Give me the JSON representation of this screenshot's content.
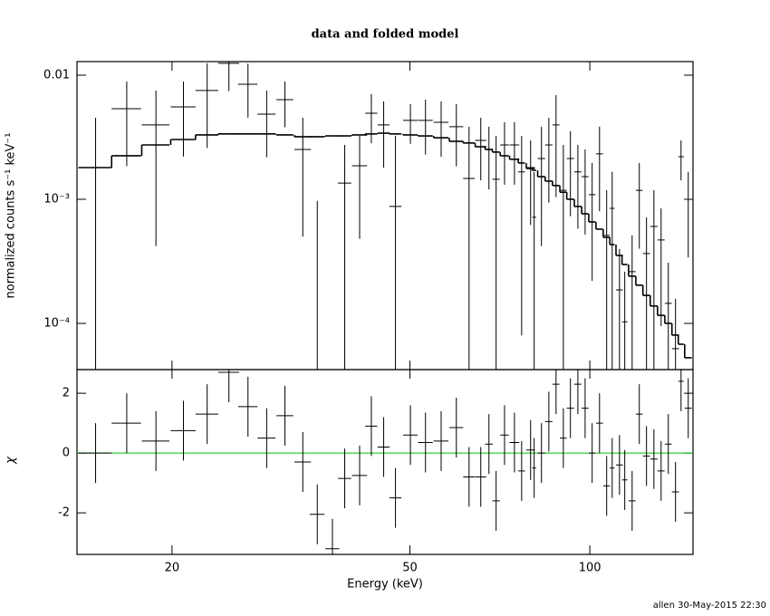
{
  "chart_data": {
    "type": "errorbar",
    "title": "data and folded model",
    "xlabel": "Energy (keV)",
    "footer": "allen 30-May-2015 22:30",
    "log_x": true,
    "xlim": [
      13.87,
      148.8
    ],
    "xticks": [
      20,
      50,
      100
    ],
    "x": [
      14.9,
      16.8,
      18.8,
      20.9,
      22.9,
      24.9,
      26.8,
      28.8,
      30.9,
      33.1,
      35.0,
      37.1,
      38.9,
      41.2,
      43.1,
      45.2,
      47.3,
      50.1,
      53.1,
      56.4,
      59.8,
      62.8,
      65.7,
      67.8,
      69.7,
      72.0,
      74.8,
      76.9,
      79.6,
      80.7,
      83.0,
      85.4,
      87.8,
      90.3,
      92.8,
      95.5,
      98.2,
      100.9,
      103.8,
      106.7,
      109.0,
      112.1,
      114.4,
      117.7,
      121.0,
      124.4,
      128.0,
      131.6,
      135.3,
      139.1,
      142.1,
      146.1
    ],
    "xerr": [
      0.95,
      0.95,
      1.0,
      1.0,
      1.0,
      1.0,
      1.0,
      1.0,
      1.0,
      1.05,
      1.0,
      1.0,
      1.0,
      1.2,
      1.0,
      1.05,
      1.1,
      1.4,
      1.5,
      1.6,
      1.6,
      1.4,
      1.4,
      1.0,
      1.0,
      1.2,
      1.4,
      1.0,
      1.3,
      0.6,
      1.2,
      1.2,
      1.2,
      1.2,
      1.3,
      1.3,
      1.3,
      1.3,
      1.4,
      1.4,
      1.0,
      1.5,
      1.2,
      1.6,
      1.6,
      1.7,
      1.8,
      1.8,
      1.8,
      1.9,
      1.5,
      2.0
    ],
    "panels": [
      {
        "ylabel": "normalized counts s⁻¹ keV⁻¹",
        "log_y": true,
        "ylim": [
          4.24e-05,
          0.01286
        ],
        "yticks": [
          {
            "value": 0.0001,
            "label": "10⁻⁴"
          },
          {
            "value": 0.001,
            "label": "10⁻³"
          },
          0.01
        ],
        "color": "#000000",
        "model_color": "#000000",
        "values": [
          0.0018,
          0.00537,
          0.00397,
          0.00555,
          0.00752,
          0.01245,
          0.00845,
          0.00485,
          0.00635,
          0.00252,
          -0.00116,
          -0.0016,
          0.00135,
          0.00186,
          0.00493,
          0.00397,
          0.000875,
          0.00432,
          0.00432,
          0.00417,
          0.00384,
          0.00147,
          0.00298,
          0.00252,
          0.00145,
          0.00274,
          0.00274,
          0.00166,
          0.0018,
          0.000715,
          0.00213,
          0.00274,
          0.00397,
          0.00118,
          0.00213,
          0.00166,
          0.00152,
          0.00109,
          0.00232,
          0.000511,
          0.000845,
          0.000186,
          0.000103,
          0.000261,
          0.00118,
          0.000365,
          0.000604,
          0.00047,
          0.000145,
          6.25e-05,
          0.0022,
          0.001
        ],
        "yerr": [
          0.00274,
          0.00352,
          0.00355,
          0.00334,
          0.00493,
          0.005,
          0.0039,
          0.00267,
          0.00254,
          0.00202,
          0.00213,
          0.0015,
          0.00139,
          0.00138,
          0.0021,
          0.00217,
          0.00237,
          0.00152,
          0.00203,
          0.00197,
          0.002,
          0.00237,
          0.00156,
          0.00132,
          0.00179,
          0.00143,
          0.00143,
          0.00158,
          0.00118,
          0.00094,
          0.00171,
          0.0018,
          0.00293,
          0.00156,
          0.0014,
          0.00108,
          0.001,
          0.00087,
          0.00152,
          0.00067,
          0.00082,
          0.000211,
          0.000158,
          0.00025,
          0.00078,
          0.00035,
          0.00058,
          0.000375,
          0.000163,
          9.5e-05,
          0.00078,
          0.00066
        ],
        "model": [
          0.0018,
          0.00224,
          0.00274,
          0.00303,
          0.0033,
          0.00336,
          0.00336,
          0.00336,
          0.0033,
          0.00319,
          0.00319,
          0.00324,
          0.00324,
          0.0033,
          0.00336,
          0.00341,
          0.00336,
          0.0033,
          0.00324,
          0.00313,
          0.00293,
          0.00284,
          0.00265,
          0.00252,
          0.0024,
          0.00224,
          0.0021,
          0.00196,
          0.00177,
          0.00171,
          0.00152,
          0.0014,
          0.00129,
          0.00114,
          0.001,
          0.000875,
          0.000764,
          0.000657,
          0.000574,
          0.000493,
          0.000431,
          0.000353,
          0.000298,
          0.00024,
          0.000203,
          0.000168,
          0.000138,
          0.000116,
          0.0001,
          8.04e-05,
          6.79e-05,
          5.28e-05
        ]
      },
      {
        "ylabel": "χ",
        "log_y": false,
        "ylim": [
          -3.39,
          2.79
        ],
        "yticks": [
          -2,
          0,
          2
        ],
        "color": "#000000",
        "model_color": "#00c000",
        "values": [
          0,
          1.0,
          0.4,
          0.75,
          1.3,
          2.7,
          1.55,
          0.5,
          1.25,
          -0.3,
          -2.05,
          -3.2,
          -0.85,
          -0.75,
          0.9,
          0.2,
          -1.5,
          0.6,
          0.35,
          0.4,
          0.85,
          -0.8,
          -0.8,
          0.3,
          -1.6,
          0.6,
          0.35,
          -0.6,
          0.1,
          -0.5,
          0,
          1.05,
          2.3,
          0.5,
          1.5,
          2.3,
          1.5,
          0,
          1.0,
          -1.1,
          -0.5,
          -0.4,
          -0.9,
          -1.6,
          1.3,
          -0.1,
          -0.2,
          -0.6,
          0.3,
          -1.3,
          2.4,
          1.5
        ],
        "yerr": 1
      }
    ]
  }
}
